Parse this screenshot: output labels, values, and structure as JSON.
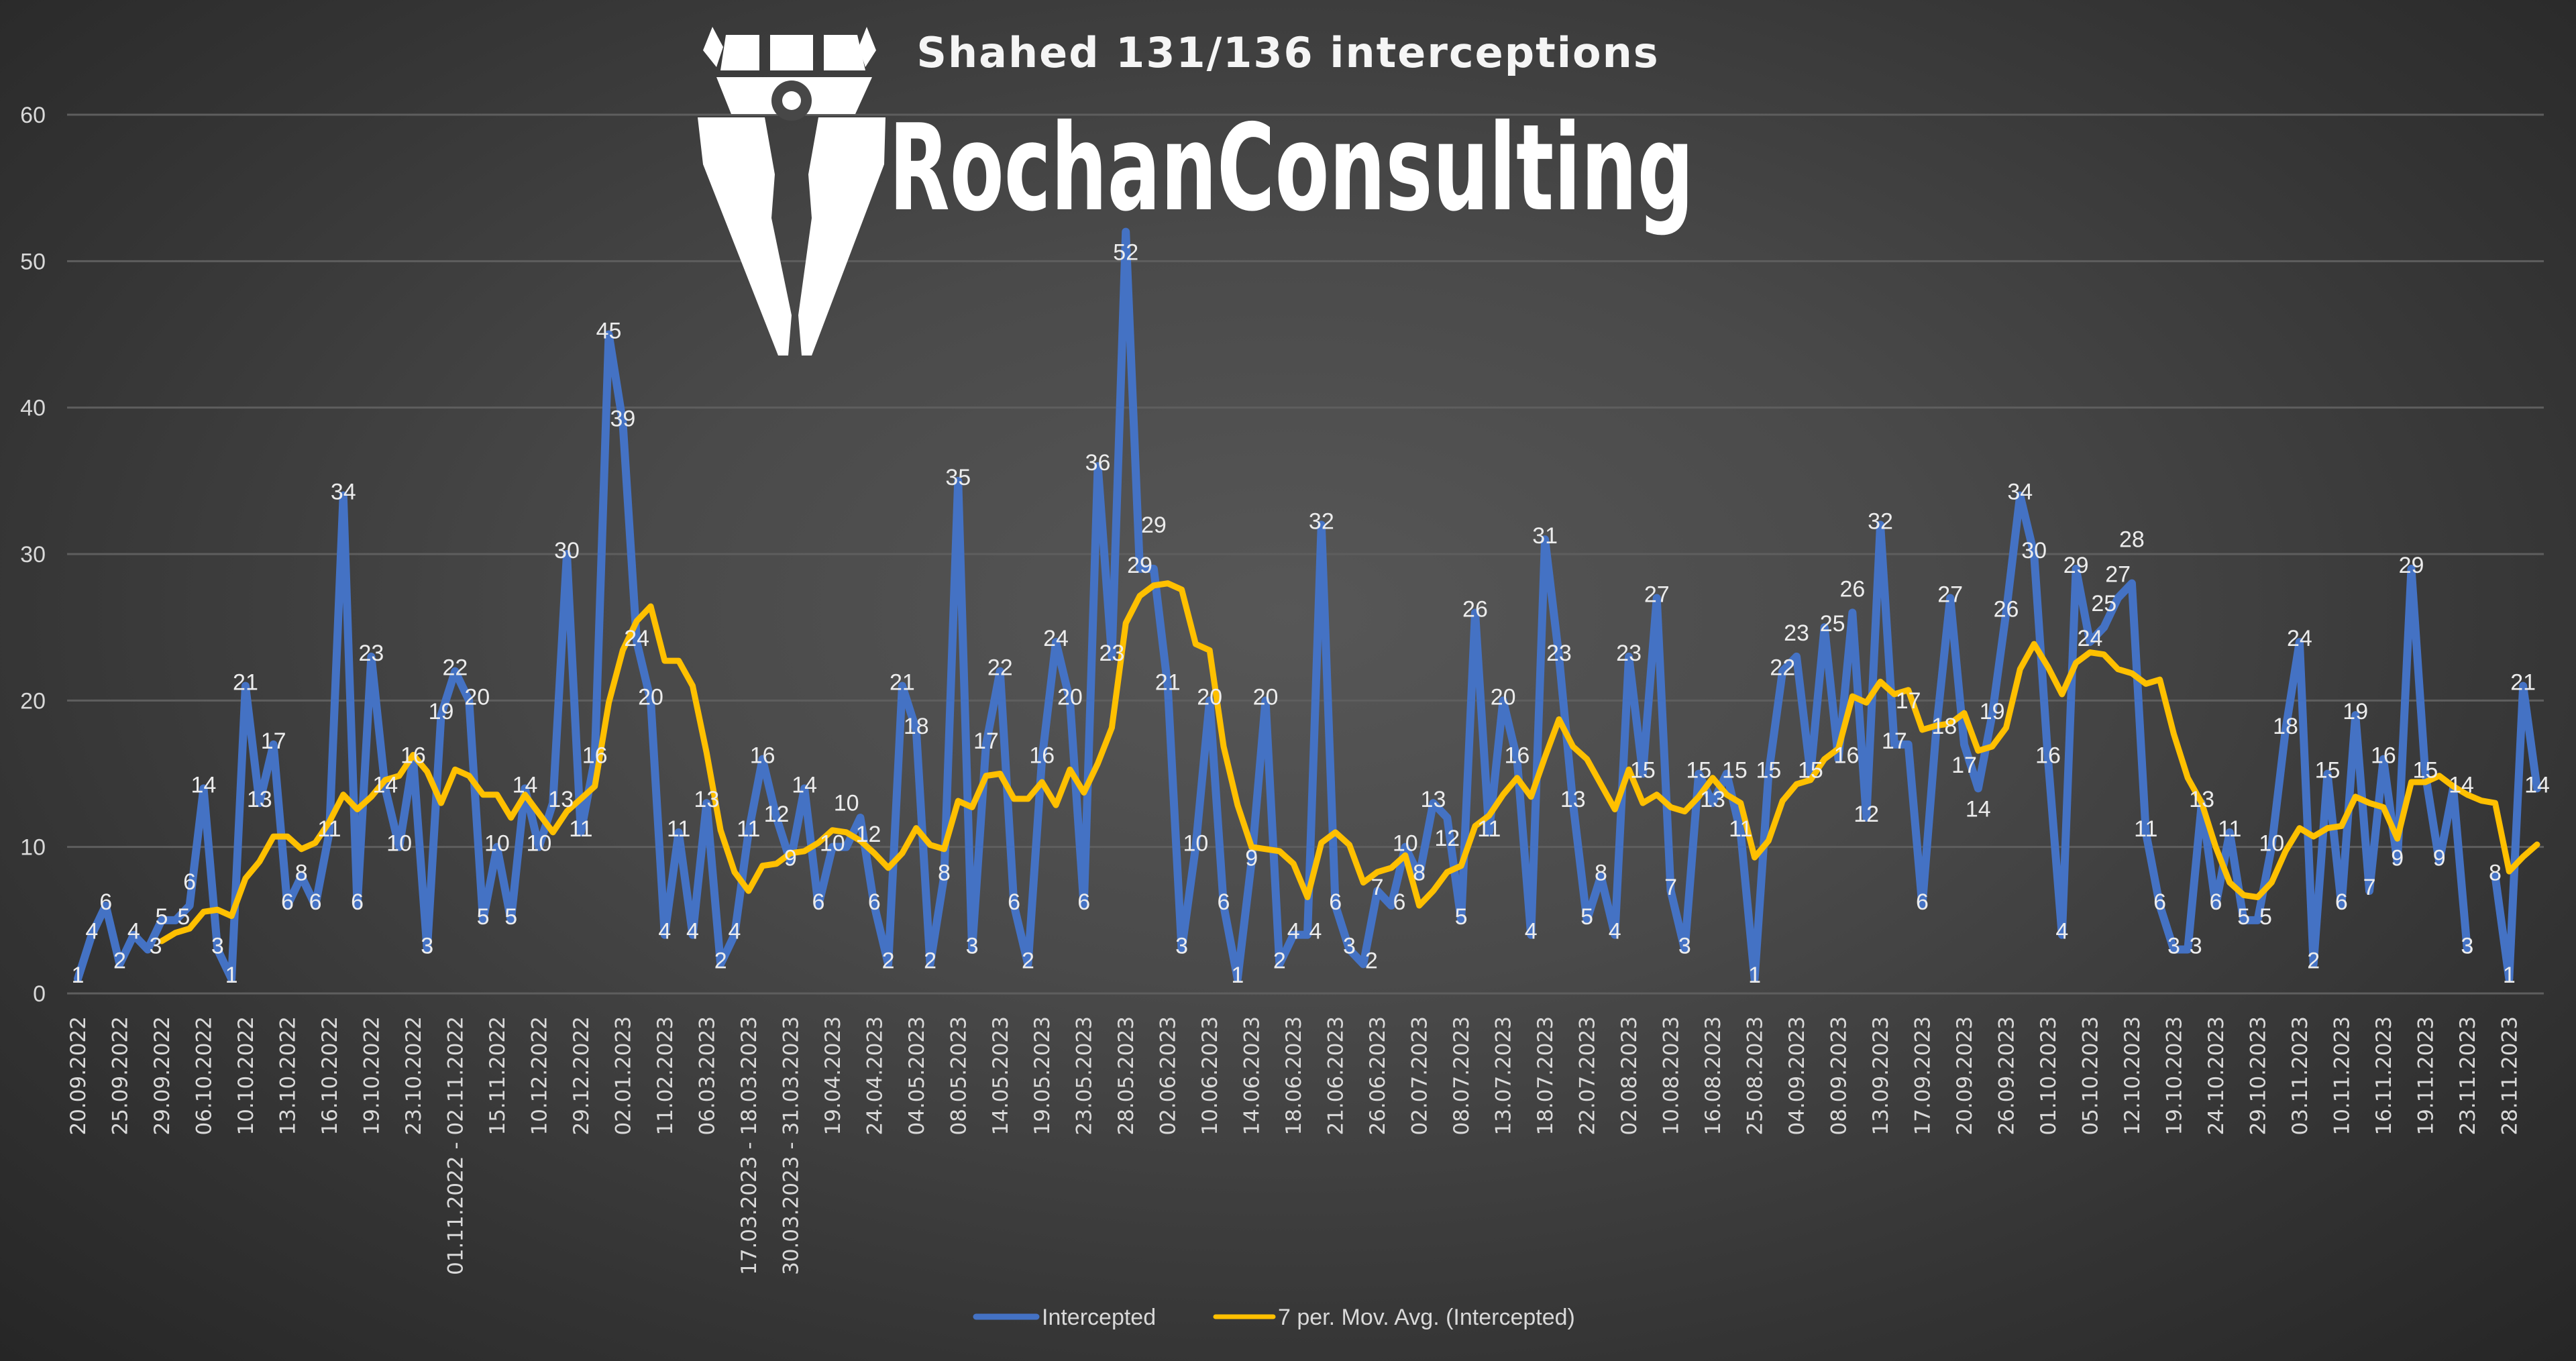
{
  "logo": {
    "text": "RochanConsulting"
  },
  "chart_data": {
    "type": "line",
    "title": "Shahed 131/136 interceptions",
    "xlabel": "",
    "ylabel": "",
    "ylim": [
      0,
      60
    ],
    "yticks": [
      0,
      10,
      20,
      30,
      40,
      50,
      60
    ],
    "grid": true,
    "legend_position": "bottom",
    "x_tick_labels": [
      "20.09.2022",
      "25.09.2022",
      "29.09.2022",
      "06.10.2022",
      "10.10.2022",
      "13.10.2022",
      "16.10.2022",
      "19.10.2022",
      "23.10.2022",
      "01.11.2022 - 02.11.2022",
      "15.11.2022",
      "10.12.2022",
      "29.12.2022",
      "02.01.2023",
      "11.02.2023",
      "06.03.2023",
      "17.03.2023 - 18.03.2023",
      "30.03.2023 - 31.03.2023",
      "19.04.2023",
      "24.04.2023",
      "04.05.2023",
      "08.05.2023",
      "14.05.2023",
      "19.05.2023",
      "23.05.2023",
      "28.05.2023",
      "02.06.2023",
      "10.06.2023",
      "14.06.2023",
      "18.06.2023",
      "21.06.2023",
      "26.06.2023",
      "02.07.2023",
      "08.07.2023",
      "13.07.2023",
      "18.07.2023",
      "22.07.2023",
      "02.08.2023",
      "10.08.2023",
      "16.08.2023",
      "25.08.2023",
      "04.09.2023",
      "08.09.2023",
      "13.09.2023",
      "17.09.2023",
      "20.09.2023",
      "26.09.2023",
      "01.10.2023",
      "05.10.2023",
      "12.10.2023",
      "19.10.2023",
      "24.10.2023",
      "29.10.2023",
      "03.11.2023",
      "10.11.2023",
      "16.11.2023",
      "19.11.2023",
      "23.11.2023",
      "28.11.2023"
    ],
    "x_tick_every": 3,
    "series": [
      {
        "name": "Intercepted",
        "color": "#4472C4",
        "data_labels": true,
        "values": [
          1,
          4,
          6,
          2,
          4,
          3,
          5,
          5,
          6,
          14,
          3,
          1,
          21,
          13,
          17,
          6,
          8,
          6,
          11,
          34,
          6,
          23,
          14,
          10,
          16,
          3,
          19,
          22,
          20,
          5,
          10,
          5,
          14,
          10,
          13,
          30,
          11,
          16,
          45,
          39,
          24,
          20,
          4,
          11,
          4,
          13,
          2,
          4,
          11,
          16,
          12,
          9,
          14,
          6,
          10,
          10,
          12,
          6,
          2,
          21,
          18,
          2,
          8,
          35,
          3,
          17,
          22,
          6,
          2,
          16,
          24,
          20,
          6,
          36,
          23,
          52,
          29,
          29,
          21,
          3,
          10,
          20,
          6,
          1,
          9,
          20,
          2,
          4,
          4,
          32,
          6,
          3,
          2,
          7,
          6,
          10,
          8,
          13,
          12,
          5,
          26,
          11,
          20,
          16,
          4,
          31,
          23,
          13,
          5,
          8,
          4,
          23,
          15,
          27,
          7,
          3,
          15,
          13,
          15,
          11,
          1,
          15,
          22,
          23,
          15,
          25,
          16,
          26,
          12,
          32,
          17,
          17,
          6,
          18,
          27,
          17,
          14,
          19,
          26,
          34,
          30,
          16,
          4,
          29,
          24,
          25,
          27,
          28,
          11,
          6,
          3,
          3,
          13,
          6,
          11,
          5,
          5,
          10,
          18,
          24,
          2,
          15,
          6,
          19,
          7,
          16,
          9,
          29,
          15,
          9,
          14,
          3,
          null,
          8,
          1,
          21,
          14
        ]
      },
      {
        "name": "7 per. Mov. Avg. (Intercepted)",
        "color": "#FFC000",
        "type": "moving_average",
        "period": 7,
        "of": "Intercepted"
      }
    ]
  }
}
